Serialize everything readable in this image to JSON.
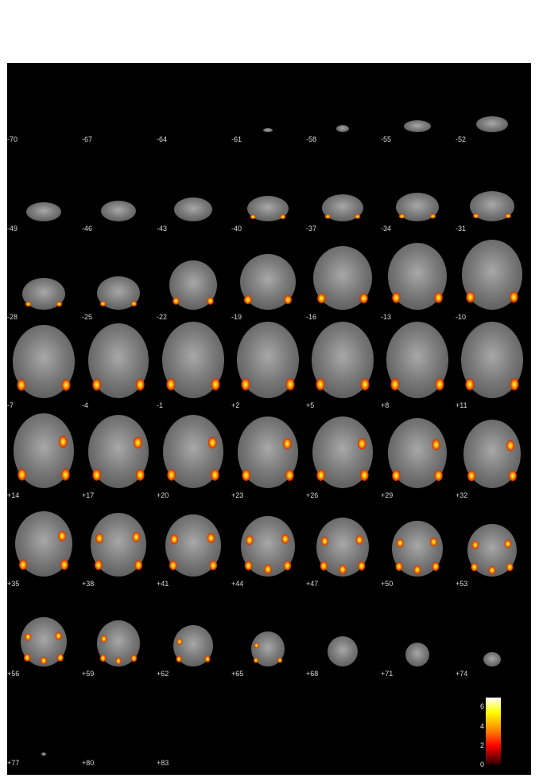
{
  "slice_labels": [
    "-70",
    "-67",
    "-64",
    "-61",
    "-58",
    "-55",
    "-52",
    "-49",
    "-46",
    "-43",
    "-40",
    "-37",
    "-34",
    "-31",
    "-28",
    "-25",
    "-22",
    "-19",
    "-16",
    "-13",
    "-10",
    "-7",
    "-4",
    "-1",
    "+2",
    "+5",
    "+8",
    "+11",
    "+14",
    "+17",
    "+20",
    "+23",
    "+26",
    "+29",
    "+32",
    "+35",
    "+38",
    "+41",
    "+44",
    "+47",
    "+50",
    "+53",
    "+56",
    "+59",
    "+62",
    "+65",
    "+68",
    "+71",
    "+74",
    "+77",
    "+80",
    "+83"
  ],
  "colorbar": {
    "ticks": [
      "6",
      "4",
      "2",
      "0"
    ],
    "colors": [
      "#ffffff",
      "#ffff00",
      "#ff8000",
      "#ff0000",
      "#300000"
    ]
  },
  "colors": {
    "background": "#000000",
    "label": "#d8d8d8"
  }
}
